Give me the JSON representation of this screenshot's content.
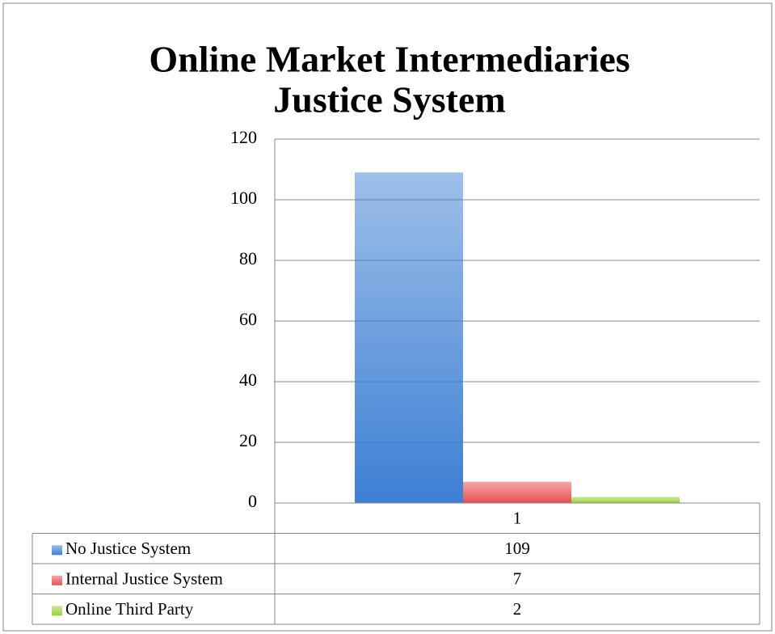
{
  "chart_data": {
    "type": "bar",
    "title": [
      "Online Market Intermediaries",
      "Justice System"
    ],
    "categories": [
      "1"
    ],
    "series": [
      {
        "name": "No Justice System",
        "color": "#3d7fd3",
        "values": [
          109
        ]
      },
      {
        "name": "Internal Justice System",
        "color": "#e85050",
        "values": [
          7
        ]
      },
      {
        "name": "Online Third Party",
        "color": "#99d236",
        "values": [
          2
        ]
      }
    ],
    "ylim": [
      0,
      120
    ],
    "yticks": [
      0,
      20,
      40,
      60,
      80,
      100,
      120
    ],
    "grid": true,
    "data_table": true
  }
}
